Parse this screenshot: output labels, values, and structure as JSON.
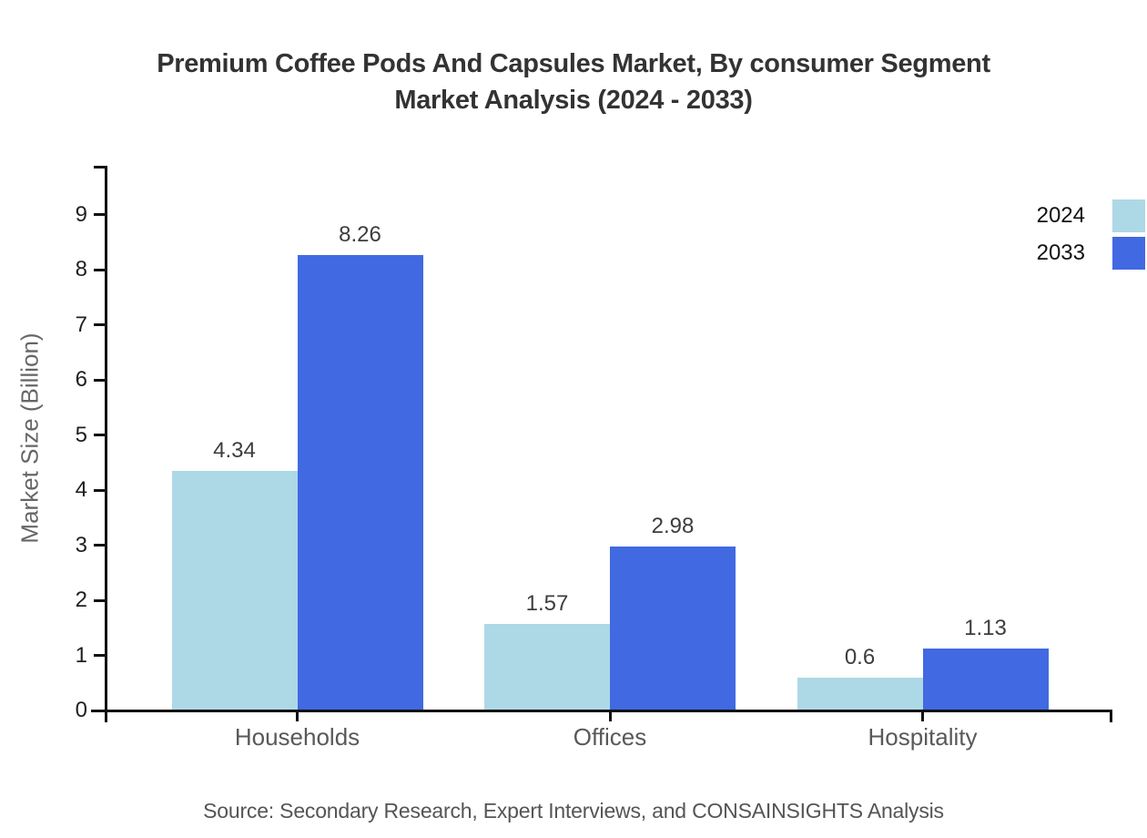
{
  "title": {
    "line1": "Premium Coffee Pods And Capsules Market, By consumer Segment",
    "line2": "Market Analysis (2024 - 2033)"
  },
  "source": "Source: Secondary Research, Expert Interviews, and CONSAINSIGHTS Analysis",
  "chart_data": {
    "type": "bar",
    "title": "Premium Coffee Pods And Capsules Market, By consumer Segment Market Analysis (2024 - 2033)",
    "categories": [
      "Households",
      "Offices",
      "Hospitality"
    ],
    "series": [
      {
        "name": "2024",
        "color": "#ADD8E6",
        "values": [
          4.34,
          1.57,
          0.6
        ]
      },
      {
        "name": "2033",
        "color": "#4169E1",
        "values": [
          8.26,
          2.98,
          1.13
        ]
      }
    ],
    "xlabel": "",
    "ylabel": "Market Size (Billion)",
    "ylim": [
      0,
      9.9
    ],
    "yticks": [
      0,
      1,
      2,
      3,
      4,
      5,
      6,
      7,
      8,
      9
    ],
    "grid": false,
    "legend_position": "top-right",
    "bar_value_labels": true,
    "axis_color": "#111111",
    "background_color": "#ffffff"
  }
}
